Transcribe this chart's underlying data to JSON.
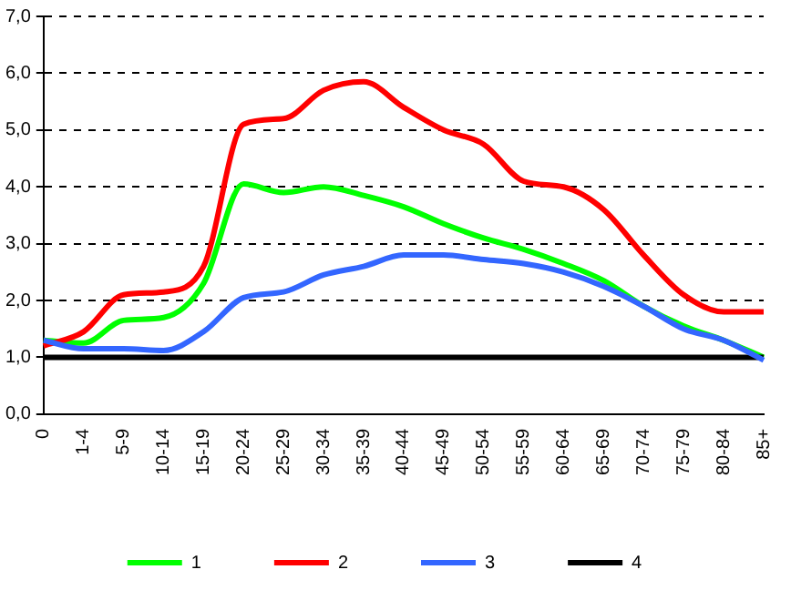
{
  "chart_data": {
    "type": "line",
    "categories": [
      "0",
      "1-4",
      "5-9",
      "10-14",
      "15-19",
      "20-24",
      "25-29",
      "30-34",
      "35-39",
      "40-44",
      "45-49",
      "50-54",
      "55-59",
      "60-64",
      "65-69",
      "70-74",
      "75-79",
      "80-84",
      "85+"
    ],
    "series": [
      {
        "name": "1",
        "color": "#00ff00",
        "values": [
          1.3,
          1.25,
          1.65,
          1.7,
          2.3,
          4.05,
          3.9,
          4.0,
          3.85,
          3.65,
          3.35,
          3.1,
          2.9,
          2.65,
          2.35,
          1.9,
          1.55,
          1.3,
          1.0
        ]
      },
      {
        "name": "2",
        "color": "#ff0000",
        "values": [
          1.2,
          1.45,
          2.1,
          2.15,
          2.6,
          5.1,
          5.2,
          5.7,
          5.85,
          5.4,
          5.0,
          4.75,
          4.1,
          4.0,
          3.6,
          2.8,
          2.1,
          1.8,
          1.8
        ]
      },
      {
        "name": "3",
        "color": "#3366ff",
        "values": [
          1.3,
          1.15,
          1.15,
          1.12,
          1.45,
          2.05,
          2.15,
          2.45,
          2.6,
          2.8,
          2.8,
          2.72,
          2.65,
          2.5,
          2.25,
          1.9,
          1.5,
          1.3,
          0.95
        ]
      },
      {
        "name": "4",
        "color": "#000000",
        "values": [
          1,
          1,
          1,
          1,
          1,
          1,
          1,
          1,
          1,
          1,
          1,
          1,
          1,
          1,
          1,
          1,
          1,
          1,
          1
        ]
      }
    ],
    "ylim": [
      0,
      7
    ],
    "yticks": [
      {
        "value": 0,
        "label": "0,0"
      },
      {
        "value": 1,
        "label": "1,0"
      },
      {
        "value": 2,
        "label": "2,0"
      },
      {
        "value": 3,
        "label": "3,0"
      },
      {
        "value": 4,
        "label": "4,0"
      },
      {
        "value": 5,
        "label": "5,0"
      },
      {
        "value": 6,
        "label": "6,0"
      },
      {
        "value": 7,
        "label": "7,0"
      }
    ],
    "grid": "y",
    "legend": "bottom",
    "marker": "none",
    "line_style": "solid"
  }
}
